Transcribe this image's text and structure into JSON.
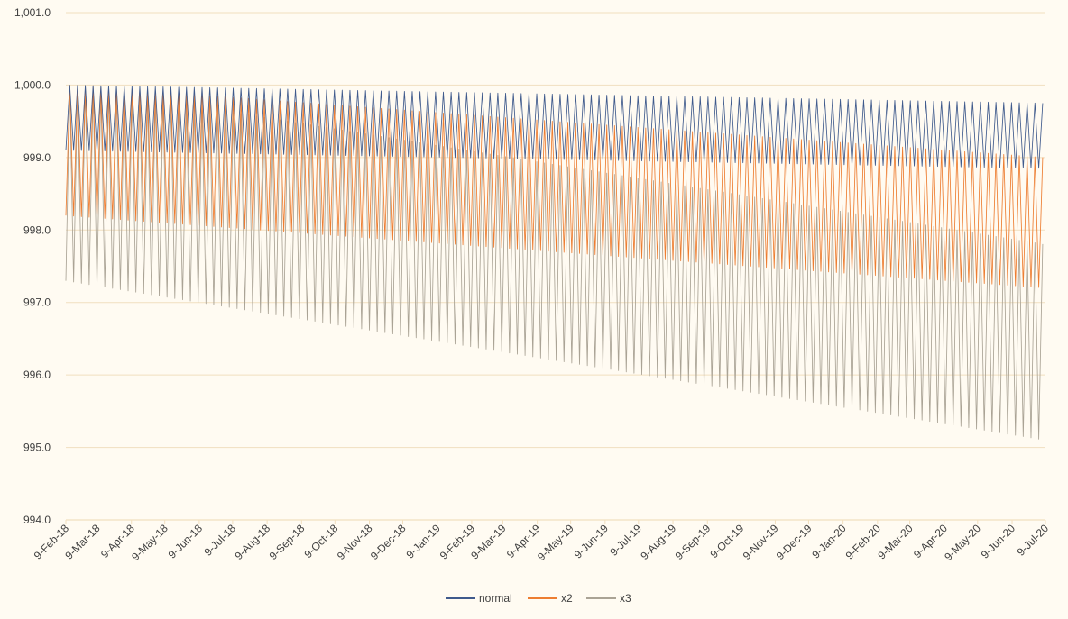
{
  "chart_data": {
    "type": "line",
    "title": "",
    "xlabel": "",
    "ylabel": "",
    "x_start": "9-Feb-18",
    "x_end": "9-Jul-20",
    "x_tick_labels": [
      "9-Feb-18",
      "9-Mar-18",
      "9-Apr-18",
      "9-May-18",
      "9-Jun-18",
      "9-Jul-18",
      "9-Aug-18",
      "9-Sep-18",
      "9-Oct-18",
      "9-Nov-18",
      "9-Dec-18",
      "9-Jan-19",
      "9-Feb-19",
      "9-Mar-19",
      "9-Apr-19",
      "9-May-19",
      "9-Jun-19",
      "9-Jul-19",
      "9-Aug-19",
      "9-Sep-19",
      "9-Oct-19",
      "9-Nov-19",
      "9-Dec-19",
      "9-Jan-20",
      "9-Feb-20",
      "9-Mar-20",
      "9-Apr-20",
      "9-May-20",
      "9-Jun-20",
      "9-Jul-20"
    ],
    "y_tick_labels": [
      "994.0",
      "995.0",
      "996.0",
      "997.0",
      "998.0",
      "999.0",
      "1,000.0",
      "1,001.0"
    ],
    "ylim": [
      994,
      1001
    ],
    "y_ticks": [
      994,
      995,
      996,
      997,
      998,
      999,
      1000,
      1001
    ],
    "grid": true,
    "legend_position": "bottom",
    "oscillation_period_days": 7,
    "series": [
      {
        "name": "normal",
        "color": "#3f5a8c",
        "high": [
          {
            "x": "9-Feb-18",
            "y": 1000.0
          },
          {
            "x": "9-Jul-20",
            "y": 999.75
          }
        ],
        "low": [
          {
            "x": "9-Feb-18",
            "y": 999.1
          },
          {
            "x": "9-Jul-20",
            "y": 998.85
          }
        ]
      },
      {
        "name": "x2",
        "color": "#ed7d31",
        "high": [
          {
            "x": "9-Feb-18",
            "y": 1000.0
          },
          {
            "x": "9-Jul-20",
            "y": 999.0
          }
        ],
        "low": [
          {
            "x": "9-Feb-18",
            "y": 998.2
          },
          {
            "x": "9-Jul-20",
            "y": 997.2
          }
        ]
      },
      {
        "name": "x3",
        "color": "#aaa395",
        "high": [
          {
            "x": "9-Feb-18",
            "y": 1000.0
          },
          {
            "x": "9-Jul-20",
            "y": 997.8
          }
        ],
        "low": [
          {
            "x": "9-Feb-18",
            "y": 997.3
          },
          {
            "x": "9-Jul-20",
            "y": 995.1
          }
        ]
      }
    ]
  }
}
